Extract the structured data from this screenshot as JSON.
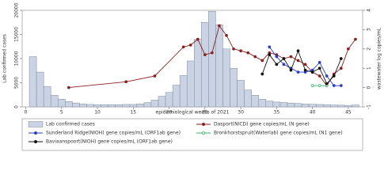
{
  "chart_data": {
    "type": "combo",
    "x_label": "epidemiological weeks of 2021",
    "y_label": "Lab  confirmed cases",
    "y2_label": "wastewater log copies/mL",
    "xlim": [
      -0.5,
      47
    ],
    "xticks": [
      0,
      5,
      10,
      15,
      20,
      25,
      30,
      35,
      40,
      45
    ],
    "ylim": [
      0,
      20000
    ],
    "yticks": [
      0,
      5000,
      10000,
      15000,
      20000
    ],
    "y2lim": [
      -1,
      4
    ],
    "y2ticks": [
      -1,
      0,
      1,
      2,
      3,
      4
    ],
    "series": [
      {
        "name": "Lab  confirmed cases",
        "type": "bar",
        "color": "#c9d3e4",
        "x": [
          1,
          2,
          3,
          4,
          5,
          6,
          7,
          8,
          9,
          10,
          11,
          12,
          13,
          14,
          15,
          16,
          17,
          18,
          19,
          20,
          21,
          22,
          23,
          24,
          25,
          26,
          27,
          28,
          29,
          30,
          31,
          32,
          33,
          34,
          35,
          36,
          37,
          38,
          39,
          40,
          41,
          42,
          43,
          44,
          45,
          46
        ],
        "values": [
          10400,
          7200,
          4200,
          2400,
          1600,
          1100,
          800,
          600,
          500,
          450,
          450,
          450,
          450,
          500,
          500,
          600,
          900,
          1400,
          2200,
          3000,
          4500,
          6500,
          9500,
          14000,
          17500,
          19800,
          17000,
          12000,
          8000,
          5500,
          3500,
          2400,
          1600,
          1200,
          1000,
          900,
          800,
          700,
          600,
          550,
          500,
          450,
          400,
          350,
          300,
          400
        ]
      },
      {
        "name": "Dasport(NICD) gene copies/mL (N gene)",
        "type": "line",
        "axis": "y2",
        "color": "#8b1f1f",
        "x": [
          6,
          14,
          18,
          22,
          23,
          24,
          25,
          26,
          27,
          28,
          29,
          30,
          31,
          32,
          33,
          34,
          35,
          36,
          37,
          38,
          39,
          40,
          41,
          42,
          43,
          44,
          45,
          46
        ],
        "values": [
          0,
          0.3,
          0.6,
          2.1,
          2.2,
          2.5,
          1.7,
          1.8,
          3.2,
          2.7,
          2.0,
          1.9,
          1.8,
          1.6,
          1.4,
          1.8,
          1.7,
          1.5,
          1.6,
          1.4,
          1.2,
          0.8,
          0.6,
          0.1,
          0.7,
          1.0,
          2.0,
          2.5
        ]
      },
      {
        "name": "Sunderland Ridge(NIOH) gene copies/mL (ORF1ab gene)",
        "type": "line",
        "axis": "y2",
        "color": "#2b3fc9",
        "x": [
          34,
          35,
          36,
          37,
          38,
          39,
          40,
          41,
          42,
          43,
          44
        ],
        "values": [
          2.1,
          1.6,
          1.2,
          1.0,
          0.8,
          0.8,
          0.9,
          1.3,
          0.6,
          0.1,
          0.1
        ]
      },
      {
        "name": "Bronkhorstspruit(Waterlab) gene copies/mL (N1 gene)",
        "type": "line",
        "axis": "y2",
        "color": "#2fb36a",
        "hollow": true,
        "x": [
          40,
          41,
          42
        ],
        "values": [
          0.1,
          0.1,
          0.1
        ]
      },
      {
        "name": "Baviaanspoort(NIOH) gene copies/mL (ORF1ab gene)",
        "type": "line",
        "axis": "y2",
        "color": "#111111",
        "x": [
          33,
          34,
          35,
          36,
          37,
          38,
          39,
          40,
          41,
          42,
          43,
          44
        ],
        "values": [
          0.7,
          1.7,
          1.2,
          1.5,
          0.9,
          1.9,
          0.9,
          0.8,
          1.0,
          0.2,
          0.6,
          1.5
        ]
      }
    ]
  }
}
